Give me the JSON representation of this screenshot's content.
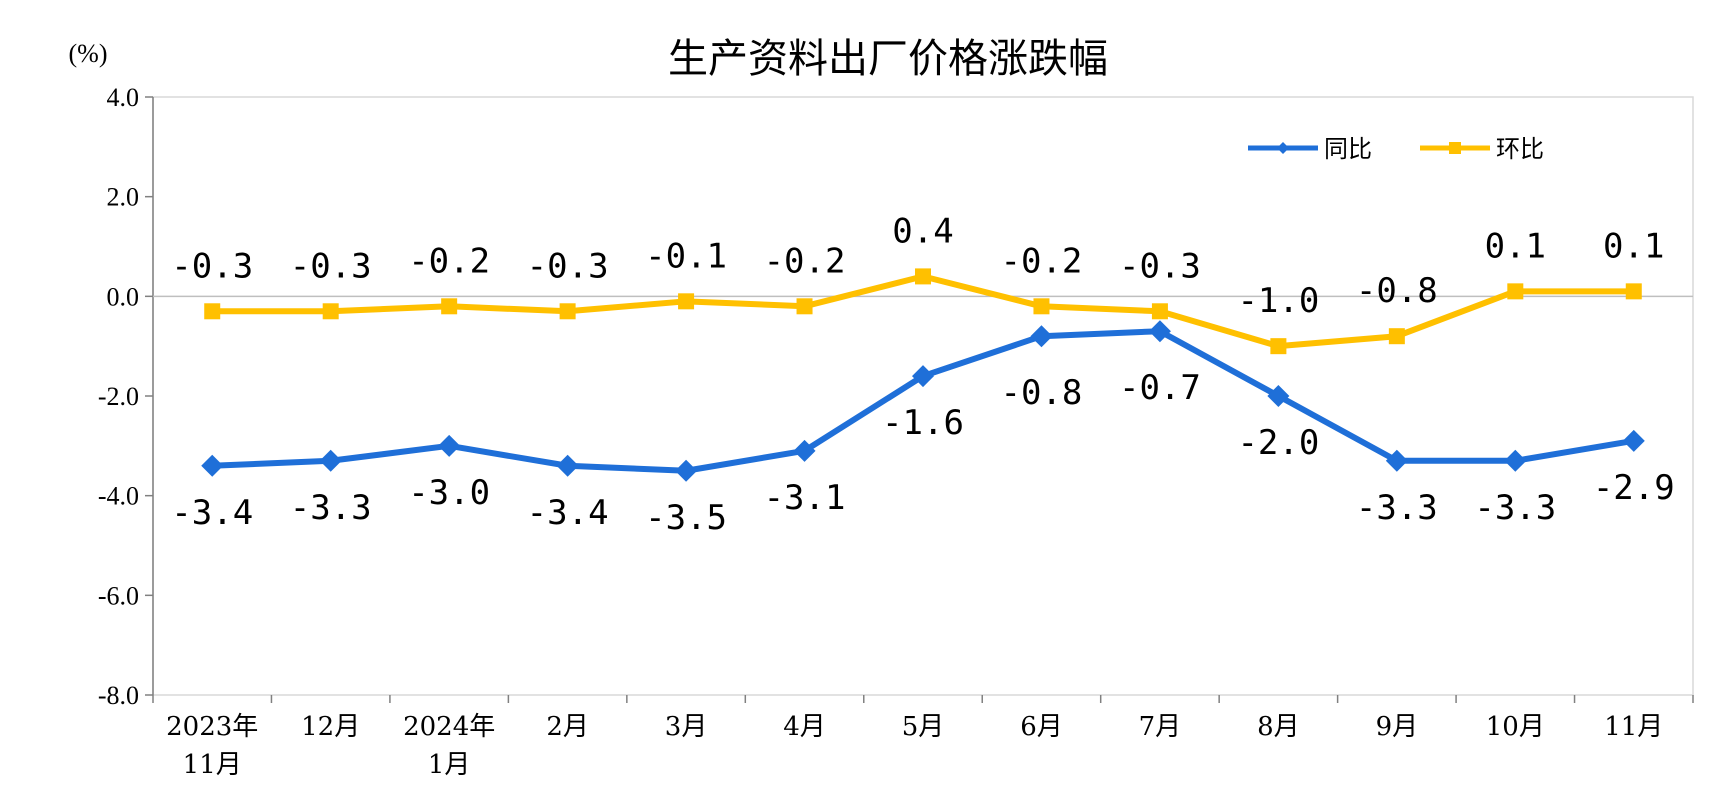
{
  "chart_data": {
    "type": "line",
    "title": "生产资料出厂价格涨跌幅",
    "ylabel": "(%)",
    "ylim": [
      -8,
      4
    ],
    "yticks": [
      "4.0",
      "2.0",
      "0.0",
      "-2.0",
      "-4.0",
      "-6.0",
      "-8.0"
    ],
    "ytick_values": [
      4,
      2,
      0,
      -2,
      -4,
      -6,
      -8
    ],
    "categories": [
      [
        "2023年",
        "11月"
      ],
      [
        "12月"
      ],
      [
        "2024年",
        "1月"
      ],
      [
        "2月"
      ],
      [
        "3月"
      ],
      [
        "4月"
      ],
      [
        "5月"
      ],
      [
        "6月"
      ],
      [
        "7月"
      ],
      [
        "8月"
      ],
      [
        "9月"
      ],
      [
        "10月"
      ],
      [
        "11月"
      ]
    ],
    "series": [
      {
        "name": "同比",
        "color": "#1F6FD8",
        "marker": "diamond",
        "values": [
          -3.4,
          -3.3,
          -3.0,
          -3.4,
          -3.5,
          -3.1,
          -1.6,
          -0.8,
          -0.7,
          -2.0,
          -3.3,
          -3.3,
          -2.9
        ],
        "labels": [
          "-3.4",
          "-3.3",
          "-3.0",
          "-3.4",
          "-3.5",
          "-3.1",
          "-1.6",
          "-0.8",
          "-0.7",
          "-2.0",
          "-3.3",
          "-3.3",
          "-2.9"
        ]
      },
      {
        "name": "环比",
        "color": "#FFC000",
        "marker": "square",
        "values": [
          -0.3,
          -0.3,
          -0.2,
          -0.3,
          -0.1,
          -0.2,
          0.4,
          -0.2,
          -0.3,
          -1.0,
          -0.8,
          0.1,
          0.1
        ],
        "labels": [
          "-0.3",
          "-0.3",
          "-0.2",
          "-0.3",
          "-0.1",
          "-0.2",
          "0.4",
          "-0.2",
          "-0.3",
          "-1.0",
          "-0.8",
          "0.1",
          "0.1"
        ]
      }
    ],
    "grid": false,
    "legend_position": "top-right"
  }
}
